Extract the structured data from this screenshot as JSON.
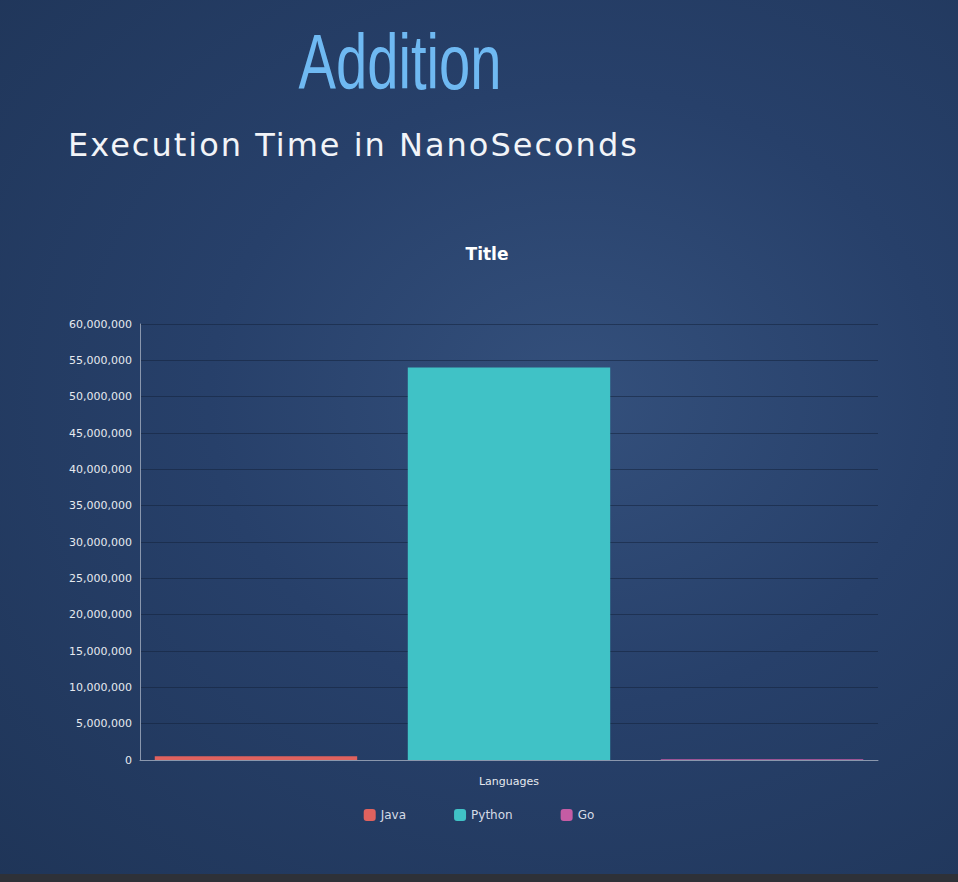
{
  "page": {
    "heading": "Addition",
    "subheading": "Execution Time in NanoSeconds"
  },
  "chart_data": {
    "type": "bar",
    "title": "Title",
    "x_label": "Languages",
    "categories": [
      null
    ],
    "series": [
      {
        "name": "Java",
        "color": "#e0625e",
        "values": [
          500000
        ]
      },
      {
        "name": "Python",
        "color": "#40c2c6",
        "values": [
          54000000
        ]
      },
      {
        "name": "Go",
        "color": "#c55ca4",
        "values": [
          100000
        ]
      }
    ],
    "ylim": [
      0,
      60000000
    ],
    "yticks": [
      0,
      {
        "value": 5000000,
        "label": "5,000,000"
      },
      {
        "value": 10000000,
        "label": "10,000,000"
      },
      {
        "value": 15000000,
        "label": "15,000,000"
      },
      {
        "value": 20000000,
        "label": "20,000,000"
      },
      {
        "value": 25000000,
        "label": "25,000,000"
      },
      {
        "value": 30000000,
        "label": "30,000,000"
      },
      {
        "value": 35000000,
        "label": "35,000,000"
      },
      {
        "value": 40000000,
        "label": "40,000,000"
      },
      {
        "value": 45000000,
        "label": "45,000,000"
      },
      {
        "value": 50000000,
        "label": "50,000,000"
      },
      {
        "value": 55000000,
        "label": "55,000,000"
      },
      {
        "value": 60000000,
        "label": "60,000,000"
      }
    ],
    "grid": true,
    "legend": "bottom"
  }
}
